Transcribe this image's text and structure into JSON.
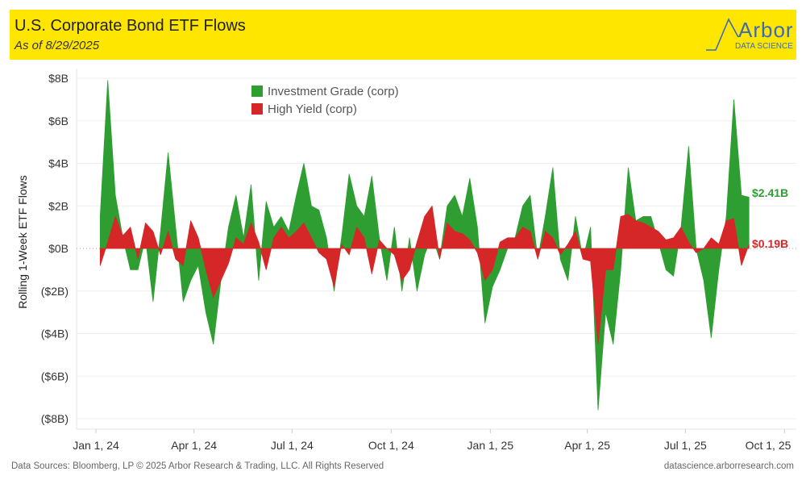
{
  "header": {
    "title": "U.S. Corporate Bond ETF Flows",
    "subtitle": "As of 8/29/2025",
    "logo_text": "Arbor",
    "logo_subtext": "DATA SCIENCE",
    "background": "#ffe600"
  },
  "footer": {
    "left": "Data Sources: Bloomberg, LP © 2025 Arbor Research & Trading, LLC. All Rights Reserved",
    "right": "datascience.arborresearch.com"
  },
  "chart_data": {
    "type": "area",
    "title": "",
    "xlabel": "",
    "ylabel": "Rolling 1-Week ETF Flows",
    "ylim": [
      -8,
      8
    ],
    "y_unit": "$B",
    "grid": true,
    "legend_position": "top-center",
    "y_ticks": [
      "$8B",
      "$6B",
      "$4B",
      "$2B",
      "$0B",
      "($2B)",
      "($4B)",
      "($6B)",
      "($8B)"
    ],
    "y_tick_values": [
      8,
      6,
      4,
      2,
      0,
      -2,
      -4,
      -6,
      -8
    ],
    "x_ticks": [
      {
        "date": "2024-01-01",
        "label": "Jan 1, 24"
      },
      {
        "date": "2024-04-01",
        "label": "Apr 1, 24"
      },
      {
        "date": "2024-07-01",
        "label": "Jul 1, 24"
      },
      {
        "date": "2024-10-01",
        "label": "Oct 1, 24"
      },
      {
        "date": "2025-01-01",
        "label": "Jan 1, 25"
      },
      {
        "date": "2025-04-01",
        "label": "Apr 1, 25"
      },
      {
        "date": "2025-07-01",
        "label": "Jul 1, 25"
      },
      {
        "date": "2025-10-01",
        "label": "Oct 1, 25"
      }
    ],
    "x": [
      "2024-01-05",
      "2024-01-12",
      "2024-01-19",
      "2024-01-26",
      "2024-02-02",
      "2024-02-09",
      "2024-02-16",
      "2024-02-23",
      "2024-03-01",
      "2024-03-08",
      "2024-03-15",
      "2024-03-22",
      "2024-03-29",
      "2024-04-05",
      "2024-04-12",
      "2024-04-19",
      "2024-04-26",
      "2024-05-03",
      "2024-05-10",
      "2024-05-17",
      "2024-05-24",
      "2024-05-31",
      "2024-06-07",
      "2024-06-14",
      "2024-06-21",
      "2024-06-28",
      "2024-07-05",
      "2024-07-12",
      "2024-07-19",
      "2024-07-26",
      "2024-08-02",
      "2024-08-09",
      "2024-08-16",
      "2024-08-23",
      "2024-08-30",
      "2024-09-06",
      "2024-09-13",
      "2024-09-20",
      "2024-09-27",
      "2024-10-04",
      "2024-10-11",
      "2024-10-18",
      "2024-10-25",
      "2024-11-01",
      "2024-11-08",
      "2024-11-15",
      "2024-11-22",
      "2024-11-29",
      "2024-12-06",
      "2024-12-13",
      "2024-12-20",
      "2024-12-27",
      "2025-01-03",
      "2025-01-10",
      "2025-01-17",
      "2025-01-24",
      "2025-01-31",
      "2025-02-07",
      "2025-02-14",
      "2025-02-21",
      "2025-02-28",
      "2025-03-07",
      "2025-03-14",
      "2025-03-21",
      "2025-03-28",
      "2025-04-04",
      "2025-04-11",
      "2025-04-18",
      "2025-04-25",
      "2025-05-02",
      "2025-05-09",
      "2025-05-16",
      "2025-05-23",
      "2025-05-30",
      "2025-06-06",
      "2025-06-13",
      "2025-06-20",
      "2025-06-27",
      "2025-07-04",
      "2025-07-11",
      "2025-07-18",
      "2025-07-25",
      "2025-08-01",
      "2025-08-08",
      "2025-08-15",
      "2025-08-22",
      "2025-08-29"
    ],
    "series": [
      {
        "name": "Investment Grade (corp)",
        "color": "#2e9e32",
        "end_label": "$2.41B",
        "values": [
          1.5,
          7.9,
          2.5,
          0.5,
          -1.0,
          -1.0,
          0.5,
          -2.5,
          0.8,
          4.5,
          1.0,
          -2.5,
          -1.5,
          -0.8,
          -3.0,
          -4.5,
          -1.5,
          1.0,
          2.5,
          0.5,
          3.0,
          -1.5,
          2.2,
          1.0,
          1.5,
          0.8,
          2.5,
          4.0,
          2.0,
          1.8,
          0.5,
          -2.0,
          0.5,
          3.5,
          2.0,
          1.5,
          3.4,
          0.5,
          -1.5,
          1.0,
          -2.0,
          0.5,
          -2.0,
          -0.3,
          0.6,
          -0.5,
          2.0,
          2.5,
          1.5,
          3.3,
          1.0,
          -3.5,
          -1.8,
          -1.0,
          0,
          0.5,
          2.0,
          2.5,
          -0.5,
          1.5,
          3.8,
          -0.5,
          -1.5,
          1.5,
          -0.5,
          1.0,
          -7.6,
          -3.0,
          -4.5,
          -1.0,
          3.8,
          1.3,
          1.5,
          1.5,
          0.3,
          -1.0,
          -1.3,
          1.0,
          4.8,
          0.0,
          -1.5,
          -4.2,
          -1.0,
          1.5,
          7.0,
          2.5,
          2.41
        ]
      },
      {
        "name": "High Yield (corp)",
        "color": "#d62728",
        "end_label": "$0.19B",
        "values": [
          -0.8,
          0.3,
          1.5,
          0.6,
          1.0,
          -0.5,
          1.2,
          0.8,
          -0.3,
          0.8,
          -0.5,
          -0.8,
          1.3,
          0.5,
          -1.0,
          -2.3,
          -1.5,
          -0.7,
          0.5,
          0.2,
          1.2,
          0.3,
          -1.0,
          0.5,
          1.0,
          0.5,
          0.8,
          1.2,
          0.5,
          -0.2,
          -0.5,
          -1.8,
          0.2,
          -0.3,
          1.0,
          0.5,
          -1.2,
          0.4,
          0,
          -0.3,
          -1.5,
          -1.0,
          0.3,
          1.5,
          2.0,
          -0.5,
          1.2,
          0.8,
          0.7,
          0.4,
          -0.2,
          -1.5,
          -1.0,
          0.3,
          0.5,
          0.5,
          1.0,
          0.8,
          -0.5,
          0.8,
          0.5,
          -0.3,
          0.2,
          0.8,
          -0.5,
          -0.6,
          -4.5,
          -1.0,
          -1.0,
          1.5,
          1.6,
          1.3,
          1.2,
          1.0,
          0.8,
          0.4,
          0.5,
          1.0,
          0.3,
          -0.2,
          0,
          0.5,
          0.2,
          1.3,
          1.4,
          -0.8,
          0.19
        ]
      }
    ]
  }
}
